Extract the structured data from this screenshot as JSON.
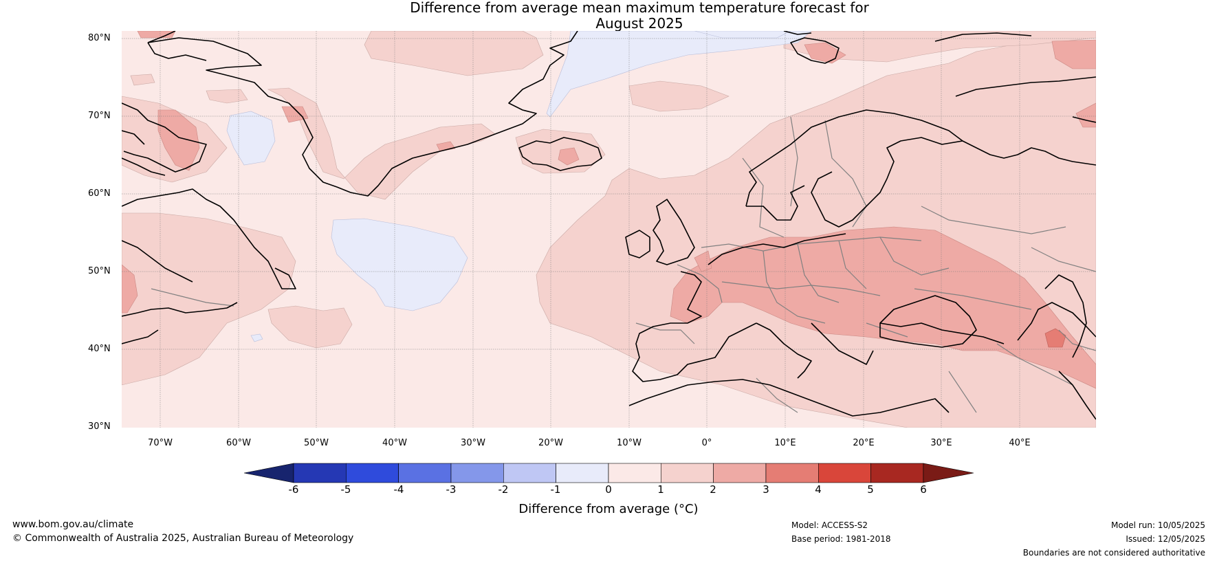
{
  "title": {
    "line1": "Difference from average mean maximum temperature forecast for",
    "line2": "August 2025"
  },
  "axes": {
    "lat_labels": [
      "80°N",
      "70°N",
      "60°N",
      "50°N",
      "40°N",
      "30°N"
    ],
    "lon_labels": [
      "70°W",
      "60°W",
      "50°W",
      "40°W",
      "30°W",
      "20°W",
      "10°W",
      "0°",
      "10°E",
      "20°E",
      "30°E",
      "40°E"
    ],
    "lat_range": [
      30,
      81
    ],
    "lon_range": [
      -75,
      50
    ]
  },
  "colorbar": {
    "title": "Difference from average (°C)",
    "tick_labels": [
      "-6",
      "-5",
      "-4",
      "-3",
      "-2",
      "-1",
      "0",
      "1",
      "2",
      "3",
      "4",
      "5",
      "6"
    ],
    "colors": [
      "#17246e",
      "#2538b4",
      "#2f4bdc",
      "#5a71e3",
      "#8497ea",
      "#bfc7f4",
      "#e8ebfa",
      "#fbe9e7",
      "#f5d2ce",
      "#eeaaa5",
      "#e57d74",
      "#d9463a",
      "#a82821",
      "#7a1b16"
    ]
  },
  "map_colors": {
    "ocean_bg": "#fbe9e7",
    "band_1_2": "#f5d2ce",
    "band_2_3": "#eeaaa5",
    "band_3_4": "#e57d74",
    "band_neg1_0": "#e8ebfa",
    "coast": "#000000",
    "border": "#808080"
  },
  "footer": {
    "website": "www.bom.gov.au/climate",
    "copyright": "© Commonwealth of Australia 2025, Australian Bureau of Meteorology",
    "model": "Model: ACCESS-S2",
    "base_period": "Base period: 1981-2018",
    "model_run": "Model run: 10/05/2025",
    "issued": "Issued: 12/05/2025",
    "disclaimer": "Boundaries are not considered authoritative"
  }
}
